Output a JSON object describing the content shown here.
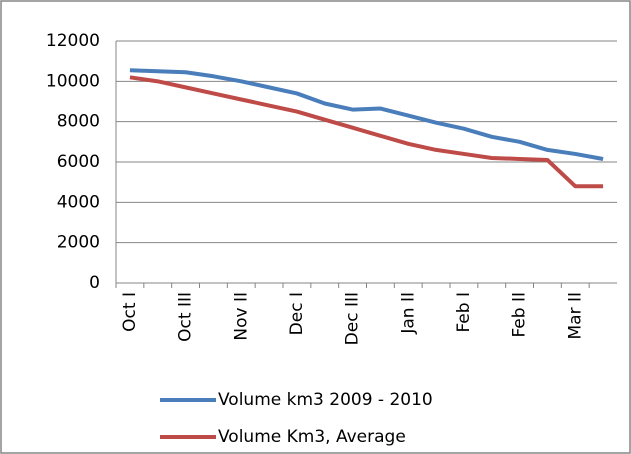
{
  "chart_data": {
    "type": "line",
    "categories": [
      "Oct I",
      null,
      "Oct III",
      null,
      "Nov II",
      null,
      "Dec I",
      null,
      "Dec III",
      null,
      "Jan II",
      null,
      "Feb I",
      null,
      "Feb II",
      null,
      "Mar II",
      null
    ],
    "series": [
      {
        "name": "Volume km3 2009 - 2010",
        "color": "#4a7ebb",
        "values": [
          10550,
          10500,
          10450,
          10250,
          10000,
          9700,
          9400,
          8900,
          8600,
          8650,
          8300,
          7950,
          7650,
          7250,
          7000,
          6600,
          6400,
          6150
        ]
      },
      {
        "name": "Volume Km3, Average",
        "color": "#be4b48",
        "values": [
          10200,
          10000,
          9700,
          9400,
          9100,
          8800,
          8500,
          8100,
          7700,
          7300,
          6900,
          6600,
          6400,
          6200,
          6150,
          6100,
          4800,
          4800
        ]
      }
    ],
    "ylim": [
      0,
      12000
    ],
    "yticks": [
      0,
      2000,
      4000,
      6000,
      8000,
      10000,
      12000
    ],
    "grid": true,
    "legend": "bottom"
  }
}
